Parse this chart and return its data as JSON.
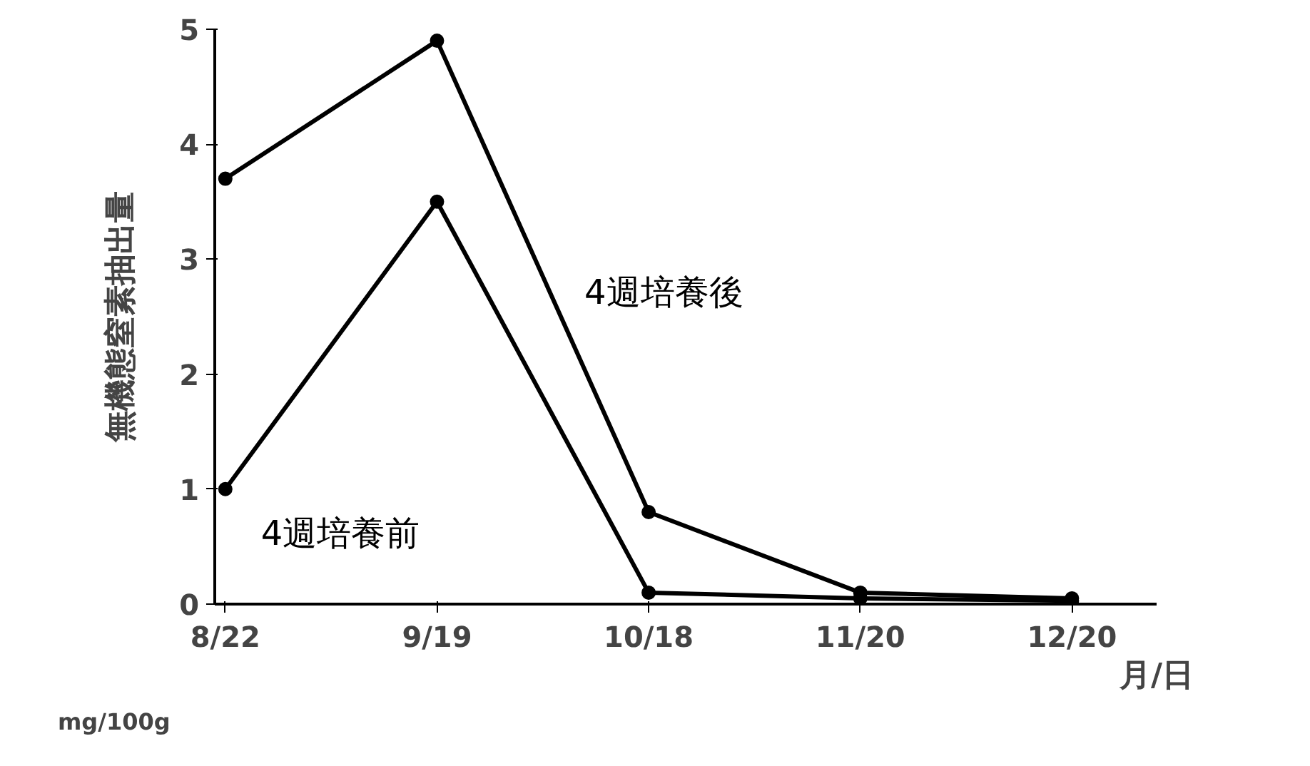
{
  "chart_data": {
    "type": "line",
    "ylabel": "無機態窒素抽出量",
    "xlabel": "月/日",
    "categories": [
      "8/22",
      "9/19",
      "10/18",
      "11/20",
      "12/20"
    ],
    "series": [
      {
        "name": "4週培養後",
        "color": "#000000",
        "values": [
          3.7,
          4.9,
          0.8,
          0.1,
          0.05
        ]
      },
      {
        "name": "4週培養前",
        "color": "#000000",
        "values": [
          1.0,
          3.5,
          0.1,
          0.05,
          0.03
        ]
      }
    ],
    "ylim": [
      0,
      5
    ],
    "yticks": [
      0,
      1,
      2,
      3,
      4,
      5
    ],
    "annotations": [
      "mg/100g"
    ],
    "marker": "circle",
    "grid": false
  }
}
